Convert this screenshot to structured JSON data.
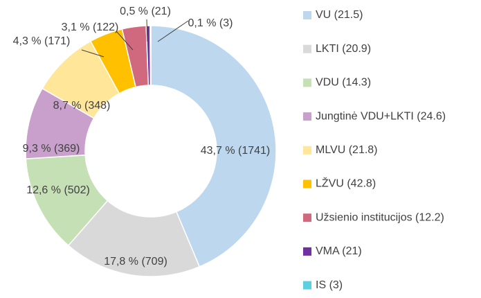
{
  "chart_data": {
    "type": "donut",
    "categories": [
      "VU (21.5)",
      "LKTI (20.9)",
      "VDU (14.3)",
      "Jungtinė VDU+LKTI (24.6)",
      "MLVU (21.8)",
      "LŽVU (42.8)",
      "Užsienio institucijos (12.2)",
      "VMA (21)",
      "IS (3)"
    ],
    "values": [
      43.7,
      17.8,
      12.6,
      9.3,
      8.7,
      4.3,
      3.1,
      0.5,
      0.1
    ],
    "value_labels": [
      "43,7 % (1741)",
      "17,8 % (709)",
      "12,6 % (502)",
      "9,3 % (369)",
      "8,7 %  (348)",
      "4,3 % (171)",
      "3,1 % (122)",
      "0,5 % (21)",
      "0,1 % (3)"
    ],
    "colors": [
      "#bdd7ee",
      "#d9d9d9",
      "#c5e0b4",
      "#c9a0cc",
      "#ffe699",
      "#ffc000",
      "#d0697e",
      "#7030a0",
      "#5bd0e0"
    ],
    "legend": "right"
  }
}
